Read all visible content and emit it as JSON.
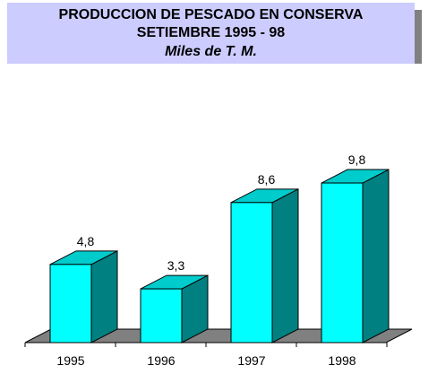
{
  "title": {
    "line1": "PRODUCCION DE PESCADO EN CONSERVA",
    "line2": "SETIEMBRE 1995 - 98",
    "subtitle": "Miles de T. M."
  },
  "colors": {
    "bar_front": "#00ffff",
    "bar_side": "#008080",
    "bar_top": "#00cccc",
    "floor": "#808080",
    "title_bg": "#ccccff",
    "title_shadow": "#808080"
  },
  "chart_data": {
    "type": "bar",
    "style": "3d",
    "title": "PRODUCCION DE PESCADO EN CONSERVA SETIEMBRE 1995 - 98",
    "subtitle": "Miles de T. M.",
    "categories": [
      "1995",
      "1996",
      "1997",
      "1998"
    ],
    "values": [
      4.8,
      3.3,
      8.6,
      9.8
    ],
    "value_labels": [
      "4,8",
      "3,3",
      "8,6",
      "9,8"
    ],
    "xlabel": "",
    "ylabel": "",
    "ylim": [
      0,
      10
    ],
    "grid": false,
    "legend": "none"
  }
}
